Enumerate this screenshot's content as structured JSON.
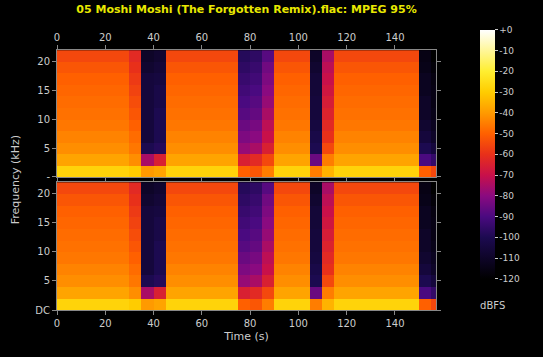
{
  "chart_data": {
    "type": "heatmap",
    "title": "05 Moshi Moshi (The Forgotten Remix).flac: MPEG 95%",
    "xlabel": "Time (s)",
    "ylabel": "Frequency (kHz)",
    "xlim": [
      0,
      157
    ],
    "ylim": [
      0,
      22.05
    ],
    "xticks": [
      0,
      20,
      40,
      60,
      80,
      100,
      120,
      140
    ],
    "x": [
      2.5,
      7.5,
      12.5,
      17.5,
      22.5,
      27.5,
      32.5,
      37.5,
      42.5,
      47.5,
      52.5,
      57.5,
      62.5,
      67.5,
      72.5,
      77.5,
      82.5,
      87.5,
      92.5,
      97.5,
      102.5,
      107.5,
      112.5,
      117.5,
      122.5,
      127.5,
      132.5,
      137.5,
      142.5,
      147.5,
      152.5,
      157.5
    ],
    "y": [
      1,
      3,
      5,
      7,
      9,
      11,
      13,
      15,
      17,
      19,
      21
    ],
    "z": [
      [
        -28,
        -28,
        -28,
        -28,
        -28,
        -28,
        -30,
        -40,
        -38,
        -28,
        -28,
        -28,
        -28,
        -28,
        -28,
        -50,
        -52,
        -45,
        -28,
        -28,
        -28,
        -45,
        -35,
        -28,
        -28,
        -28,
        -28,
        -28,
        -28,
        -28,
        -50,
        -55
      ],
      [
        -38,
        -38,
        -38,
        -38,
        -38,
        -38,
        -42,
        -75,
        -65,
        -38,
        -38,
        -38,
        -38,
        -38,
        -38,
        -65,
        -62,
        -55,
        -38,
        -38,
        -38,
        -85,
        -45,
        -38,
        -38,
        -38,
        -38,
        -38,
        -38,
        -38,
        -90,
        -95
      ],
      [
        -42,
        -42,
        -42,
        -42,
        -42,
        -42,
        -46,
        -100,
        -98,
        -42,
        -42,
        -42,
        -42,
        -42,
        -42,
        -78,
        -75,
        -65,
        -42,
        -42,
        -42,
        -100,
        -55,
        -42,
        -42,
        -42,
        -42,
        -42,
        -42,
        -42,
        -100,
        -105
      ],
      [
        -44,
        -44,
        -44,
        -44,
        -44,
        -44,
        -48,
        -105,
        -100,
        -44,
        -44,
        -44,
        -44,
        -44,
        -44,
        -82,
        -80,
        -70,
        -44,
        -44,
        -44,
        -102,
        -60,
        -44,
        -44,
        -44,
        -44,
        -44,
        -44,
        -44,
        -105,
        -110
      ],
      [
        -46,
        -46,
        -46,
        -46,
        -46,
        -46,
        -50,
        -105,
        -100,
        -46,
        -46,
        -46,
        -46,
        -46,
        -46,
        -85,
        -83,
        -72,
        -46,
        -46,
        -46,
        -104,
        -62,
        -46,
        -46,
        -46,
        -46,
        -46,
        -46,
        -46,
        -108,
        -112
      ],
      [
        -47,
        -47,
        -47,
        -47,
        -47,
        -47,
        -52,
        -105,
        -100,
        -47,
        -47,
        -47,
        -47,
        -47,
        -47,
        -88,
        -86,
        -75,
        -47,
        -47,
        -47,
        -105,
        -64,
        -47,
        -47,
        -47,
        -47,
        -47,
        -47,
        -47,
        -110,
        -114
      ],
      [
        -48,
        -48,
        -48,
        -48,
        -48,
        -48,
        -54,
        -105,
        -102,
        -48,
        -48,
        -48,
        -48,
        -48,
        -48,
        -90,
        -88,
        -78,
        -48,
        -48,
        -48,
        -105,
        -66,
        -48,
        -48,
        -48,
        -48,
        -48,
        -48,
        -48,
        -110,
        -115
      ],
      [
        -49,
        -49,
        -49,
        -49,
        -49,
        -49,
        -56,
        -105,
        -102,
        -49,
        -49,
        -49,
        -49,
        -49,
        -49,
        -92,
        -90,
        -80,
        -49,
        -49,
        -49,
        -106,
        -68,
        -49,
        -49,
        -49,
        -49,
        -49,
        -49,
        -49,
        -112,
        -115
      ],
      [
        -50,
        -50,
        -50,
        -50,
        -50,
        -50,
        -58,
        -105,
        -104,
        -50,
        -50,
        -50,
        -50,
        -50,
        -50,
        -94,
        -92,
        -82,
        -50,
        -50,
        -50,
        -106,
        -70,
        -50,
        -50,
        -50,
        -50,
        -50,
        -50,
        -50,
        -112,
        -116
      ],
      [
        -52,
        -52,
        -52,
        -52,
        -52,
        -52,
        -60,
        -108,
        -106,
        -52,
        -52,
        -52,
        -52,
        -52,
        -52,
        -96,
        -94,
        -84,
        -52,
        -52,
        -52,
        -108,
        -72,
        -52,
        -52,
        -52,
        -52,
        -52,
        -52,
        -52,
        -114,
        -118
      ],
      [
        -55,
        -55,
        -55,
        -55,
        -55,
        -55,
        -62,
        -110,
        -108,
        -55,
        -55,
        -55,
        -55,
        -55,
        -55,
        -98,
        -96,
        -88,
        -55,
        -55,
        -55,
        -110,
        -75,
        -55,
        -55,
        -55,
        -55,
        -55,
        -55,
        -55,
        -115,
        -120
      ]
    ],
    "panels": [
      {
        "yticks": [
          {
            "value": 0,
            "label": "-"
          },
          5,
          10,
          15,
          20
        ]
      },
      {
        "yticks": [
          {
            "value": 0,
            "label": "DC"
          },
          5,
          10,
          15,
          20
        ]
      }
    ],
    "colorbar": {
      "title": "dBFS",
      "range": [
        -120,
        0
      ],
      "ticks": [
        {
          "value": 0,
          "label": "+0"
        },
        -10,
        -20,
        -30,
        -40,
        -50,
        -60,
        -70,
        -80,
        -90,
        -100,
        -110,
        -120
      ]
    }
  }
}
